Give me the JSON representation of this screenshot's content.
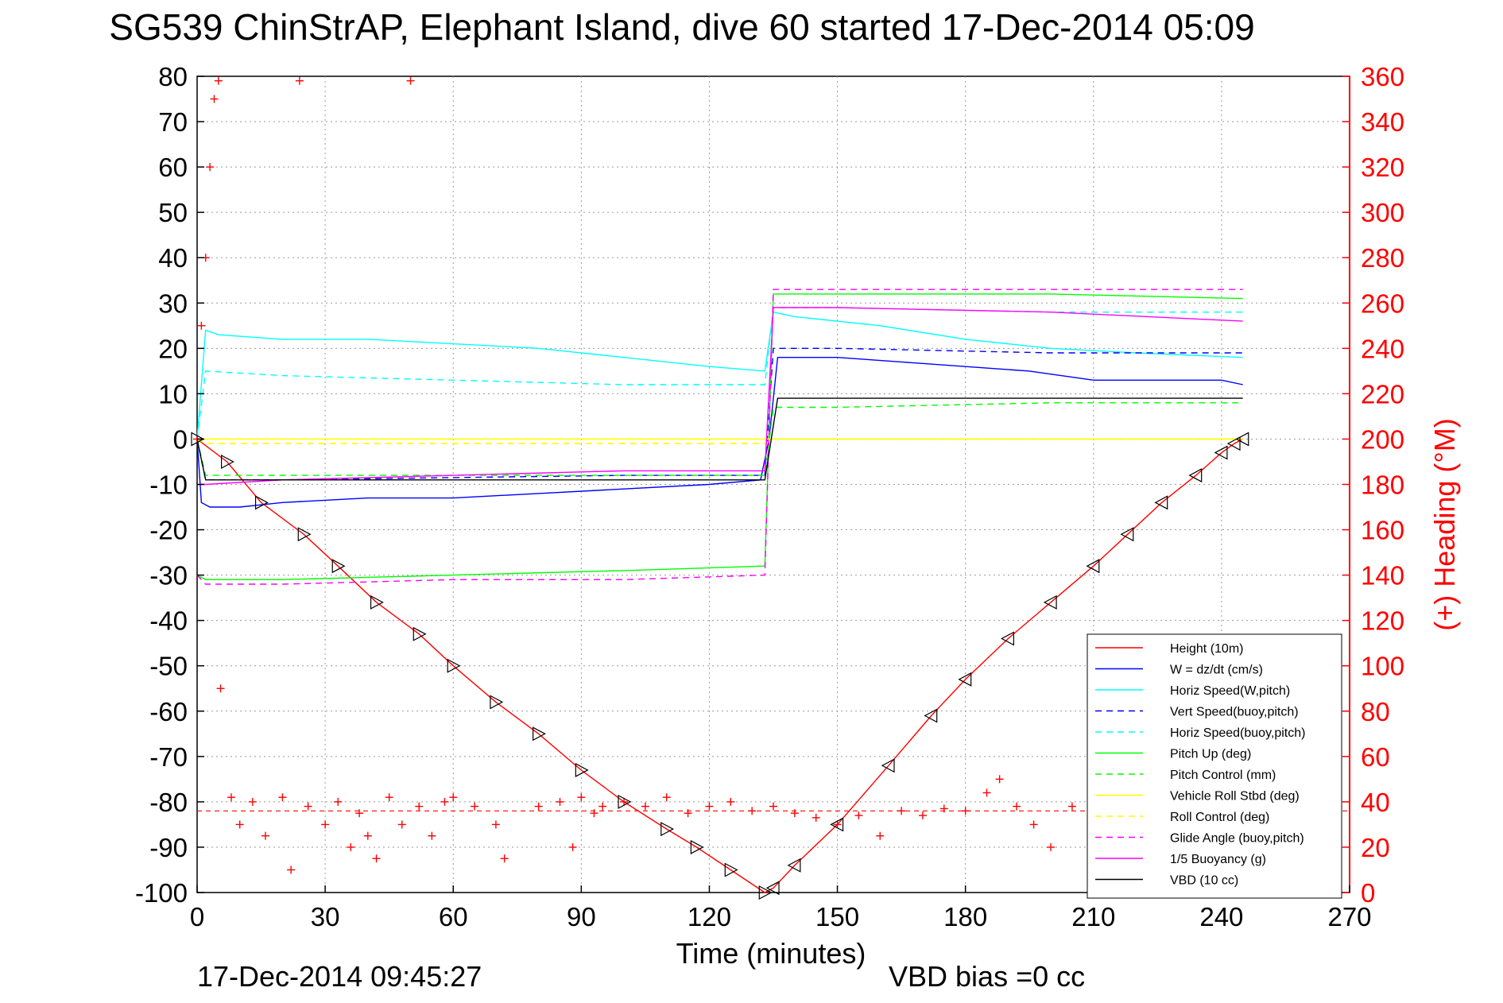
{
  "chart_data": {
    "type": "line",
    "title": "SG539 ChinStrAP, Elephant Island, dive 60 started 17-Dec-2014 05:09",
    "xlabel": "Time (minutes)",
    "ylabel": "",
    "y2label": "(+) Heading (°M)",
    "xlim": [
      0,
      270
    ],
    "ylim": [
      -100,
      80
    ],
    "y2lim": [
      0,
      360
    ],
    "x_ticks": [
      0,
      30,
      60,
      90,
      120,
      150,
      180,
      210,
      240,
      270
    ],
    "y_ticks": [
      80,
      70,
      60,
      50,
      40,
      30,
      20,
      10,
      0,
      -10,
      -20,
      -30,
      -40,
      -50,
      -60,
      -70,
      -80,
      -90,
      -100
    ],
    "y2_ticks": [
      360,
      340,
      320,
      300,
      280,
      260,
      240,
      220,
      200,
      180,
      160,
      140,
      120,
      100,
      80,
      60,
      40,
      20,
      0
    ],
    "grid": true,
    "legend_position": "bottom-right",
    "footer_left": "17-Dec-2014 09:45:27",
    "footer_right": "VBD bias =0 cc",
    "colors": {
      "height": "#ff0000",
      "w": "#0000ff",
      "horiz_speed": "#00ffff",
      "vert_speed_buoy": "#0000ff",
      "horiz_speed_buoy": "#00ffff",
      "pitch_up": "#00ff00",
      "pitch_control": "#00ff00",
      "roll": "#ffff00",
      "roll_control": "#ffff00",
      "glide_angle": "#ff00ff",
      "buoyancy": "#ff00ff",
      "vbd": "#000000",
      "heading": "#ff0000"
    },
    "series": [
      {
        "name": "Height (10m)",
        "color": "#ff0000",
        "style": "solid",
        "x": [
          0,
          7,
          15,
          25,
          33,
          42,
          52,
          60,
          70,
          80,
          90,
          100,
          110,
          117,
          125,
          133,
          135,
          140,
          150,
          162,
          172,
          180,
          190,
          200,
          210,
          218,
          226,
          234,
          240,
          243,
          245
        ],
        "y": [
          0,
          -5,
          -14,
          -21,
          -28,
          -36,
          -43,
          -50,
          -58,
          -65,
          -73,
          -80,
          -86,
          -90,
          -95,
          -100,
          -99,
          -94,
          -85,
          -72,
          -61,
          -53,
          -44,
          -36,
          -28,
          -21,
          -14,
          -8,
          -3,
          -1,
          0
        ]
      },
      {
        "name": "W = dz/dt (cm/s)",
        "color": "#0000ff",
        "style": "solid",
        "x": [
          0,
          1,
          3,
          10,
          20,
          40,
          60,
          80,
          100,
          120,
          132,
          134,
          136,
          150,
          165,
          180,
          195,
          210,
          225,
          240,
          245
        ],
        "y": [
          0,
          -14,
          -15,
          -15,
          -14,
          -13,
          -13,
          -12,
          -11,
          -10,
          -9,
          0,
          18,
          18,
          17,
          16,
          15,
          13,
          13,
          13,
          12
        ]
      },
      {
        "name": "Horiz Speed(W,pitch)",
        "color": "#00ffff",
        "style": "solid",
        "x": [
          0,
          2,
          5,
          20,
          40,
          60,
          80,
          100,
          120,
          133,
          135,
          140,
          160,
          180,
          200,
          220,
          245
        ],
        "y": [
          0,
          24,
          23,
          22,
          22,
          21,
          20,
          18,
          16,
          15,
          28,
          27,
          25,
          22,
          20,
          19,
          18
        ]
      },
      {
        "name": "Vert Speed(buoy,pitch)",
        "color": "#0000ff",
        "style": "dashed",
        "x": [
          0,
          2,
          20,
          60,
          100,
          133,
          135,
          150,
          200,
          245
        ],
        "y": [
          0,
          -9,
          -9,
          -8.5,
          -8,
          -8,
          20,
          20,
          19,
          19
        ]
      },
      {
        "name": "Horiz Speed(buoy,pitch)",
        "color": "#00ffff",
        "style": "dashed",
        "x": [
          0,
          2,
          20,
          60,
          100,
          133,
          135,
          150,
          200,
          245
        ],
        "y": [
          0,
          15,
          14,
          13,
          12,
          12,
          29,
          29,
          28,
          28
        ]
      },
      {
        "name": "Pitch Up (deg)",
        "color": "#00ff00",
        "style": "solid",
        "x": [
          0,
          2,
          20,
          60,
          100,
          133,
          135,
          150,
          200,
          245
        ],
        "y": [
          -30,
          -31,
          -31,
          -30,
          -29,
          -28,
          32,
          32,
          32,
          31
        ]
      },
      {
        "name": "Pitch Control (mm)",
        "color": "#00ff00",
        "style": "dashed",
        "x": [
          0,
          2,
          20,
          60,
          100,
          133,
          135,
          150,
          200,
          245
        ],
        "y": [
          0,
          -8,
          -8,
          -8,
          -8,
          -8,
          7,
          7,
          8,
          8
        ]
      },
      {
        "name": "Vehicle Roll Stbd (deg)",
        "color": "#ffff00",
        "style": "solid",
        "x": [
          0,
          2,
          20,
          60,
          100,
          133,
          135,
          150,
          200,
          245
        ],
        "y": [
          0,
          0,
          0,
          0,
          0,
          0,
          0,
          0,
          0,
          0
        ]
      },
      {
        "name": "Roll Control (deg)",
        "color": "#ffff00",
        "style": "dashed",
        "x": [
          0,
          2,
          20,
          60,
          100,
          133,
          135,
          150,
          200,
          245
        ],
        "y": [
          0,
          -1,
          -1,
          -1,
          -1,
          -1,
          0,
          0,
          0,
          0
        ]
      },
      {
        "name": "Glide Angle (buoy,pitch)",
        "color": "#ff00ff",
        "style": "dashed",
        "x": [
          0,
          2,
          20,
          60,
          100,
          133,
          135,
          150,
          200,
          245
        ],
        "y": [
          -30,
          -32,
          -32,
          -31,
          -31,
          -30,
          33,
          33,
          33,
          33
        ]
      },
      {
        "name": "1/5 Buoyancy (g)",
        "color": "#ff00ff",
        "style": "solid",
        "x": [
          0,
          2,
          20,
          60,
          100,
          133,
          135,
          150,
          200,
          245
        ],
        "y": [
          -10,
          -10,
          -9,
          -8,
          -7,
          -7,
          29,
          29,
          28,
          26
        ]
      },
      {
        "name": "VBD (10 cc)",
        "color": "#000000",
        "style": "solid",
        "x": [
          0,
          2,
          20,
          60,
          100,
          133,
          136,
          150,
          200,
          245
        ],
        "y": [
          0,
          -9,
          -9,
          -9,
          -9,
          -9,
          9,
          9,
          9,
          9
        ]
      }
    ],
    "heading_series": {
      "name": "(+) Heading (°M)",
      "color": "#ff0000",
      "marker": "+",
      "x": [
        0,
        1,
        2,
        3,
        4,
        5,
        5.5,
        8,
        10,
        13,
        16,
        20,
        22,
        24,
        26,
        30,
        33,
        36,
        38,
        40,
        42,
        45,
        48,
        50,
        52,
        55,
        58,
        60,
        65,
        70,
        72,
        80,
        85,
        88,
        90,
        93,
        95,
        100,
        105,
        110,
        115,
        120,
        125,
        130,
        135,
        140,
        145,
        150,
        155,
        160,
        165,
        170,
        175,
        180,
        185,
        188,
        192,
        196,
        200,
        205,
        210
      ],
      "y": [
        200,
        250,
        280,
        320,
        350,
        358,
        90,
        42,
        30,
        40,
        25,
        42,
        10,
        358,
        38,
        30,
        40,
        20,
        35,
        25,
        15,
        42,
        30,
        358,
        38,
        25,
        40,
        42,
        38,
        30,
        15,
        38,
        40,
        20,
        42,
        35,
        38,
        40,
        38,
        42,
        35,
        38,
        40,
        36,
        38,
        35,
        33,
        30,
        34,
        25,
        36,
        34,
        37,
        36,
        44,
        50,
        38,
        30,
        20,
        38,
        42
      ]
    },
    "annotations": [
      {
        "label": "hline-heading-target",
        "y2": 36,
        "color": "#ff0000",
        "style": "dashed"
      }
    ]
  }
}
